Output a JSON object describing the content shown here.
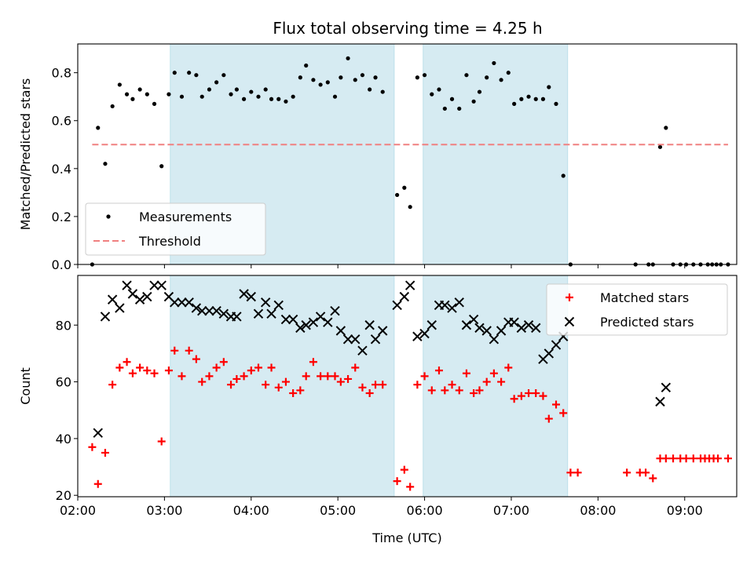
{
  "title": "Flux total observing time = 4.25 h",
  "chart_data": [
    {
      "type": "scatter",
      "ylabel": "Matched/Predicted stars",
      "xlabel": "",
      "xlim": [
        "02:00",
        "09:36"
      ],
      "ylim": [
        0,
        0.92
      ],
      "yticks": [
        "0.0",
        "0.2",
        "0.4",
        "0.6",
        "0.8"
      ],
      "ytick_values": [
        0,
        0.2,
        0.4,
        0.6,
        0.8
      ],
      "legend_position": "lower-left",
      "shaded_intervals": [
        [
          "03:04",
          "05:39"
        ],
        [
          "05:59",
          "07:39"
        ]
      ],
      "series": [
        {
          "name": "Measurements",
          "marker": "dot",
          "color": "#000000",
          "points": [
            [
              "02:10",
              0.0
            ],
            [
              "02:14",
              0.57
            ],
            [
              "02:19",
              0.42
            ],
            [
              "02:24",
              0.66
            ],
            [
              "02:29",
              0.75
            ],
            [
              "02:34",
              0.71
            ],
            [
              "02:38",
              0.69
            ],
            [
              "02:43",
              0.73
            ],
            [
              "02:48",
              0.71
            ],
            [
              "02:53",
              0.67
            ],
            [
              "02:58",
              0.41
            ],
            [
              "03:03",
              0.71
            ],
            [
              "03:07",
              0.8
            ],
            [
              "03:12",
              0.7
            ],
            [
              "03:17",
              0.8
            ],
            [
              "03:22",
              0.79
            ],
            [
              "03:26",
              0.7
            ],
            [
              "03:31",
              0.73
            ],
            [
              "03:36",
              0.76
            ],
            [
              "03:41",
              0.79
            ],
            [
              "03:46",
              0.71
            ],
            [
              "03:50",
              0.73
            ],
            [
              "03:55",
              0.69
            ],
            [
              "04:00",
              0.72
            ],
            [
              "04:05",
              0.7
            ],
            [
              "04:10",
              0.73
            ],
            [
              "04:14",
              0.69
            ],
            [
              "04:19",
              0.69
            ],
            [
              "04:24",
              0.68
            ],
            [
              "04:29",
              0.7
            ],
            [
              "04:34",
              0.78
            ],
            [
              "04:38",
              0.83
            ],
            [
              "04:43",
              0.77
            ],
            [
              "04:48",
              0.75
            ],
            [
              "04:53",
              0.76
            ],
            [
              "04:58",
              0.7
            ],
            [
              "05:02",
              0.78
            ],
            [
              "05:07",
              0.86
            ],
            [
              "05:12",
              0.77
            ],
            [
              "05:17",
              0.79
            ],
            [
              "05:22",
              0.73
            ],
            [
              "05:26",
              0.78
            ],
            [
              "05:31",
              0.72
            ],
            [
              "05:41",
              0.29
            ],
            [
              "05:46",
              0.32
            ],
            [
              "05:50",
              0.24
            ],
            [
              "05:55",
              0.78
            ],
            [
              "06:00",
              0.79
            ],
            [
              "06:05",
              0.71
            ],
            [
              "06:10",
              0.73
            ],
            [
              "06:14",
              0.65
            ],
            [
              "06:19",
              0.69
            ],
            [
              "06:24",
              0.65
            ],
            [
              "06:29",
              0.79
            ],
            [
              "06:34",
              0.68
            ],
            [
              "06:38",
              0.72
            ],
            [
              "06:43",
              0.78
            ],
            [
              "06:48",
              0.84
            ],
            [
              "06:53",
              0.77
            ],
            [
              "06:58",
              0.8
            ],
            [
              "07:02",
              0.67
            ],
            [
              "07:07",
              0.69
            ],
            [
              "07:12",
              0.7
            ],
            [
              "07:17",
              0.69
            ],
            [
              "07:22",
              0.69
            ],
            [
              "07:26",
              0.74
            ],
            [
              "07:31",
              0.67
            ],
            [
              "07:36",
              0.37
            ],
            [
              "07:41",
              0.0
            ],
            [
              "08:26",
              0.0
            ],
            [
              "08:35",
              0.0
            ],
            [
              "08:38",
              0.0
            ],
            [
              "08:43",
              0.49
            ],
            [
              "08:47",
              0.57
            ],
            [
              "08:52",
              0.0
            ],
            [
              "08:57",
              0.0
            ],
            [
              "09:01",
              0.0
            ],
            [
              "09:06",
              0.0
            ],
            [
              "09:11",
              0.0
            ],
            [
              "09:16",
              0.0
            ],
            [
              "09:19",
              0.0
            ],
            [
              "09:22",
              0.0
            ],
            [
              "09:25",
              0.0
            ],
            [
              "09:30",
              0.0
            ]
          ]
        },
        {
          "name": "Threshold",
          "style": "dashed-line",
          "color": "#f08080",
          "x": [
            "02:10",
            "09:30"
          ],
          "y": [
            0.5,
            0.5
          ]
        }
      ]
    },
    {
      "type": "scatter",
      "ylabel": "Count",
      "xlabel": "Time (UTC)",
      "xlim": [
        "02:00",
        "09:36"
      ],
      "xticks": [
        "02:00",
        "03:00",
        "04:00",
        "05:00",
        "06:00",
        "07:00",
        "08:00",
        "09:00"
      ],
      "ylim": [
        19.5,
        97.5
      ],
      "yticks": [
        "20",
        "40",
        "60",
        "80"
      ],
      "ytick_values": [
        20,
        40,
        60,
        80
      ],
      "legend_position": "upper-right",
      "shaded_intervals": [
        [
          "03:04",
          "05:39"
        ],
        [
          "05:59",
          "07:39"
        ]
      ],
      "series": [
        {
          "name": "Matched stars",
          "marker": "plus",
          "color": "#ff0000",
          "points": [
            [
              "02:10",
              37
            ],
            [
              "02:14",
              24
            ],
            [
              "02:19",
              35
            ],
            [
              "02:24",
              59
            ],
            [
              "02:29",
              65
            ],
            [
              "02:34",
              67
            ],
            [
              "02:38",
              63
            ],
            [
              "02:43",
              65
            ],
            [
              "02:48",
              64
            ],
            [
              "02:53",
              63
            ],
            [
              "02:58",
              39
            ],
            [
              "03:03",
              64
            ],
            [
              "03:07",
              71
            ],
            [
              "03:12",
              62
            ],
            [
              "03:17",
              71
            ],
            [
              "03:22",
              68
            ],
            [
              "03:26",
              60
            ],
            [
              "03:31",
              62
            ],
            [
              "03:36",
              65
            ],
            [
              "03:41",
              67
            ],
            [
              "03:46",
              59
            ],
            [
              "03:50",
              61
            ],
            [
              "03:55",
              62
            ],
            [
              "04:00",
              64
            ],
            [
              "04:05",
              65
            ],
            [
              "04:10",
              59
            ],
            [
              "04:14",
              65
            ],
            [
              "04:19",
              58
            ],
            [
              "04:24",
              60
            ],
            [
              "04:29",
              56
            ],
            [
              "04:34",
              57
            ],
            [
              "04:38",
              62
            ],
            [
              "04:43",
              67
            ],
            [
              "04:48",
              62
            ],
            [
              "04:53",
              62
            ],
            [
              "04:58",
              62
            ],
            [
              "05:02",
              60
            ],
            [
              "05:07",
              61
            ],
            [
              "05:12",
              65
            ],
            [
              "05:17",
              58
            ],
            [
              "05:22",
              56
            ],
            [
              "05:26",
              59
            ],
            [
              "05:31",
              59
            ],
            [
              "05:41",
              25
            ],
            [
              "05:46",
              29
            ],
            [
              "05:50",
              23
            ],
            [
              "05:55",
              59
            ],
            [
              "06:00",
              62
            ],
            [
              "06:05",
              57
            ],
            [
              "06:10",
              64
            ],
            [
              "06:14",
              57
            ],
            [
              "06:19",
              59
            ],
            [
              "06:24",
              57
            ],
            [
              "06:29",
              63
            ],
            [
              "06:34",
              56
            ],
            [
              "06:38",
              57
            ],
            [
              "06:43",
              60
            ],
            [
              "06:48",
              63
            ],
            [
              "06:53",
              60
            ],
            [
              "06:58",
              65
            ],
            [
              "07:02",
              54
            ],
            [
              "07:07",
              55
            ],
            [
              "07:12",
              56
            ],
            [
              "07:17",
              56
            ],
            [
              "07:22",
              55
            ],
            [
              "07:26",
              47
            ],
            [
              "07:31",
              52
            ],
            [
              "07:36",
              49
            ],
            [
              "07:41",
              28
            ],
            [
              "07:46",
              28
            ],
            [
              "08:20",
              28
            ],
            [
              "08:29",
              28
            ],
            [
              "08:33",
              28
            ],
            [
              "08:38",
              26
            ],
            [
              "08:43",
              33
            ],
            [
              "08:47",
              33
            ],
            [
              "08:52",
              33
            ],
            [
              "08:57",
              33
            ],
            [
              "09:01",
              33
            ],
            [
              "09:06",
              33
            ],
            [
              "09:11",
              33
            ],
            [
              "09:14",
              33
            ],
            [
              "09:17",
              33
            ],
            [
              "09:20",
              33
            ],
            [
              "09:23",
              33
            ],
            [
              "09:30",
              33
            ]
          ]
        },
        {
          "name": "Predicted stars",
          "marker": "cross",
          "color": "#000000",
          "points": [
            [
              "02:14",
              42
            ],
            [
              "02:19",
              83
            ],
            [
              "02:24",
              89
            ],
            [
              "02:29",
              86
            ],
            [
              "02:34",
              94
            ],
            [
              "02:38",
              91
            ],
            [
              "02:43",
              89
            ],
            [
              "02:48",
              90
            ],
            [
              "02:53",
              94
            ],
            [
              "02:58",
              94
            ],
            [
              "03:03",
              90
            ],
            [
              "03:07",
              88
            ],
            [
              "03:12",
              88
            ],
            [
              "03:17",
              88
            ],
            [
              "03:22",
              86
            ],
            [
              "03:26",
              85
            ],
            [
              "03:31",
              85
            ],
            [
              "03:36",
              85
            ],
            [
              "03:41",
              84
            ],
            [
              "03:46",
              83
            ],
            [
              "03:50",
              83
            ],
            [
              "03:55",
              91
            ],
            [
              "04:00",
              90
            ],
            [
              "04:05",
              84
            ],
            [
              "04:10",
              88
            ],
            [
              "04:14",
              84
            ],
            [
              "04:19",
              87
            ],
            [
              "04:24",
              82
            ],
            [
              "04:29",
              82
            ],
            [
              "04:34",
              79
            ],
            [
              "04:38",
              80
            ],
            [
              "04:43",
              81
            ],
            [
              "04:48",
              83
            ],
            [
              "04:53",
              81
            ],
            [
              "04:58",
              85
            ],
            [
              "05:02",
              78
            ],
            [
              "05:07",
              75
            ],
            [
              "05:12",
              75
            ],
            [
              "05:17",
              71
            ],
            [
              "05:22",
              80
            ],
            [
              "05:26",
              75
            ],
            [
              "05:31",
              78
            ],
            [
              "05:41",
              87
            ],
            [
              "05:46",
              90
            ],
            [
              "05:50",
              94
            ],
            [
              "05:55",
              76
            ],
            [
              "06:00",
              77
            ],
            [
              "06:05",
              80
            ],
            [
              "06:10",
              87
            ],
            [
              "06:14",
              87
            ],
            [
              "06:19",
              86
            ],
            [
              "06:24",
              88
            ],
            [
              "06:29",
              80
            ],
            [
              "06:34",
              82
            ],
            [
              "06:38",
              79
            ],
            [
              "06:43",
              78
            ],
            [
              "06:48",
              75
            ],
            [
              "06:53",
              78
            ],
            [
              "06:58",
              81
            ],
            [
              "07:02",
              81
            ],
            [
              "07:07",
              79
            ],
            [
              "07:12",
              80
            ],
            [
              "07:17",
              79
            ],
            [
              "07:22",
              68
            ],
            [
              "07:26",
              70
            ],
            [
              "07:31",
              73
            ],
            [
              "07:36",
              76
            ],
            [
              "08:43",
              53
            ],
            [
              "08:47",
              58
            ]
          ]
        }
      ]
    }
  ]
}
